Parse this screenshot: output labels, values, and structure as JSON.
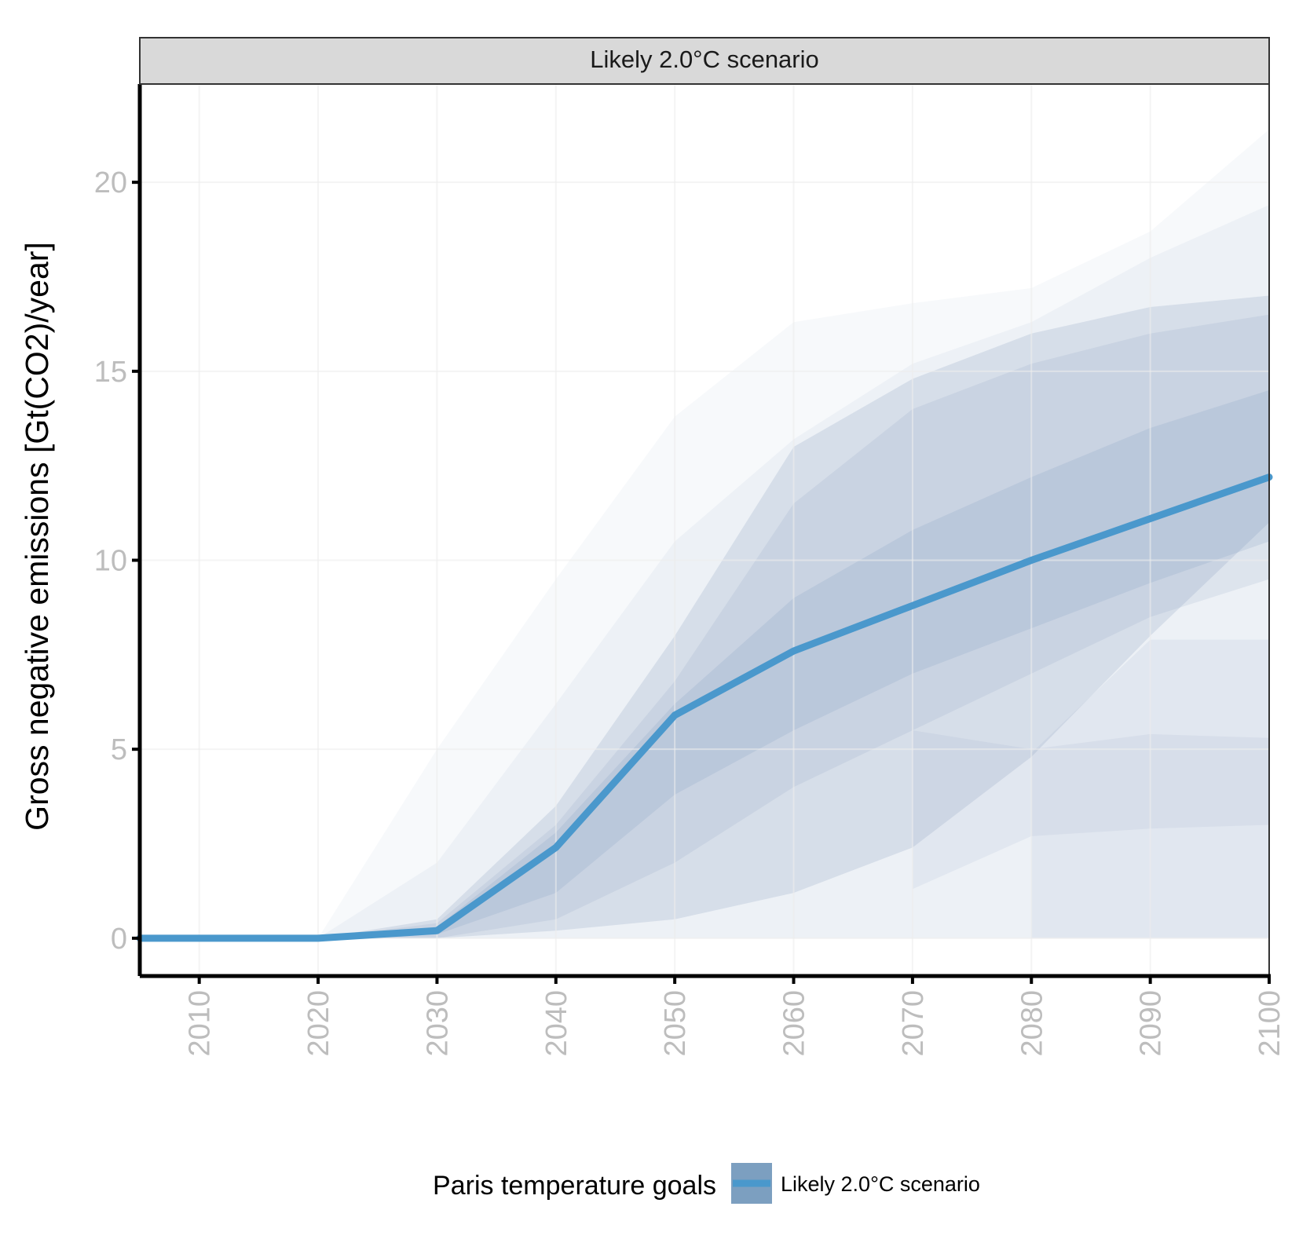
{
  "chart_data": {
    "type": "area",
    "facet_title": "Likely 2.0°C scenario",
    "xlabel": "",
    "ylabel": "Gross negative emissions [Gt(CO2)/year]",
    "x_ticks": [
      2010,
      2020,
      2030,
      2040,
      2050,
      2060,
      2070,
      2080,
      2090,
      2100
    ],
    "y_ticks": [
      0,
      5,
      10,
      15,
      20
    ],
    "xlim": [
      2005,
      2100
    ],
    "ylim": [
      -1,
      22.6
    ],
    "grid": true,
    "legend": {
      "title": "Paris temperature goals",
      "entries": [
        "Likely 2.0°C scenario"
      ],
      "position": "bottom"
    },
    "line_color": "#4a98cc",
    "band_color": "#7c97bb",
    "series": [
      {
        "name": "Likely 2.0°C scenario",
        "x": [
          2005,
          2010,
          2020,
          2030,
          2040,
          2050,
          2060,
          2070,
          2080,
          2090,
          2100
        ],
        "values": [
          0,
          0,
          0,
          0.2,
          2.4,
          5.9,
          7.6,
          8.8,
          10.0,
          11.1,
          12.2
        ]
      }
    ],
    "ranges": [
      {
        "x": [
          2020,
          2030,
          2040,
          2050,
          2060,
          2070,
          2080,
          2090,
          2100
        ],
        "lower": [
          0,
          0,
          0,
          0,
          0,
          0,
          0,
          0,
          0
        ],
        "upper": [
          0,
          5.0,
          9.5,
          13.8,
          16.3,
          16.8,
          17.2,
          18.7,
          21.4
        ]
      },
      {
        "x": [
          2020,
          2030,
          2040,
          2050,
          2060,
          2070,
          2080,
          2090,
          2100
        ],
        "lower": [
          0,
          0,
          0,
          0,
          0,
          0,
          0,
          0,
          0
        ],
        "upper": [
          0,
          2.0,
          6.2,
          10.5,
          13.2,
          15.2,
          16.3,
          18.0,
          19.4
        ]
      },
      {
        "x": [
          2020,
          2030,
          2040,
          2050,
          2060,
          2070,
          2080,
          2090,
          2100
        ],
        "lower": [
          0,
          0,
          0.2,
          0.5,
          1.2,
          2.4,
          4.8,
          8.0,
          11.0
        ],
        "upper": [
          0,
          0.5,
          3.5,
          8.0,
          13.0,
          14.8,
          16.0,
          16.7,
          17.0
        ]
      },
      {
        "x": [
          2020,
          2030,
          2040,
          2050,
          2060,
          2070,
          2080,
          2090,
          2100
        ],
        "lower": [
          0,
          0,
          0.5,
          2.0,
          4.0,
          5.5,
          7.0,
          8.5,
          9.5
        ],
        "upper": [
          0,
          0.4,
          3.0,
          6.8,
          11.5,
          14.0,
          15.2,
          16.0,
          16.5
        ]
      },
      {
        "x": [
          2020,
          2030,
          2040,
          2050,
          2060,
          2070,
          2080,
          2090,
          2100
        ],
        "lower": [
          0,
          0.1,
          1.2,
          3.8,
          5.5,
          7.0,
          8.2,
          9.4,
          10.5
        ],
        "upper": [
          0,
          0.3,
          2.8,
          6.2,
          9.0,
          10.8,
          12.2,
          13.5,
          14.5
        ]
      },
      {
        "x": [
          2070,
          2080,
          2090,
          2100
        ],
        "lower": [
          1.3,
          2.7,
          2.9,
          3.0
        ],
        "upper": [
          5.5,
          5.0,
          5.4,
          5.3
        ]
      },
      {
        "x": [
          2080,
          2090,
          2100
        ],
        "lower": [
          0,
          0,
          0
        ],
        "upper": [
          4.9,
          7.9,
          7.9
        ]
      }
    ]
  }
}
